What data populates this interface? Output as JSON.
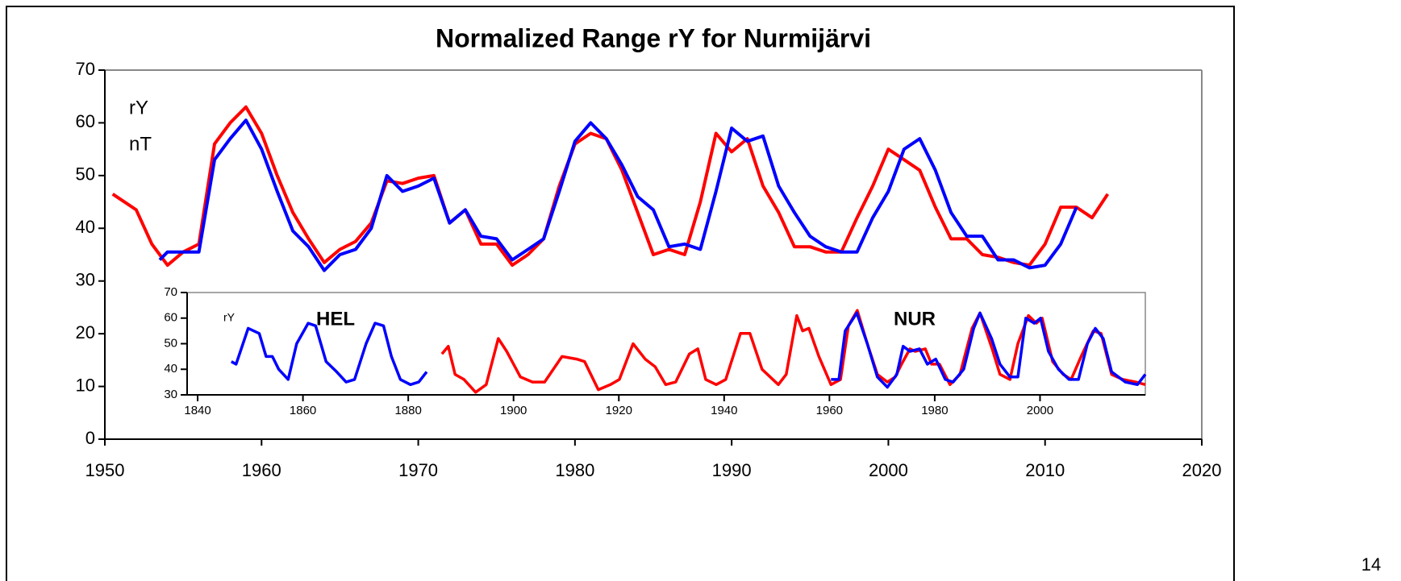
{
  "page_number": "14",
  "chart_data": [
    {
      "type": "line",
      "title": "Normalized Range rY for Nurmijärvi",
      "annotations": [
        "rY",
        "nT"
      ],
      "xlim": [
        1950,
        2020
      ],
      "xticks": [
        1950,
        1960,
        1970,
        1980,
        1990,
        2000,
        2010,
        2020
      ],
      "ylim": [
        0,
        70
      ],
      "yticks": [
        0,
        10,
        20,
        30,
        40,
        50,
        60,
        70
      ],
      "series": [
        {
          "color": "#ff0000",
          "x": [
            1950.5,
            1951,
            1952,
            1953,
            1954,
            1955,
            1956,
            1957,
            1958,
            1959,
            1960,
            1961,
            1962,
            1963,
            1964,
            1965,
            1966,
            1967,
            1968,
            1969,
            1970,
            1971,
            1972,
            1973,
            1974,
            1975,
            1976,
            1977,
            1978,
            1979,
            1980,
            1981,
            1982,
            1983,
            1984,
            1985,
            1986,
            1987,
            1988,
            1989,
            1990,
            1991,
            1992,
            1993,
            1994,
            1995,
            1996,
            1997,
            1998,
            1999,
            2000,
            2001,
            2002,
            2003,
            2004,
            2005,
            2006,
            2007,
            2008,
            2009,
            2010,
            2011,
            2012,
            2013,
            2014
          ],
          "values": [
            46.5,
            45.5,
            43.5,
            37,
            33,
            35.5,
            37,
            56,
            60,
            63,
            58,
            50,
            43,
            38,
            33.5,
            36,
            37.5,
            41,
            49,
            48.5,
            49.5,
            50,
            41,
            43.5,
            37,
            37,
            33,
            35,
            38,
            48,
            56,
            58,
            57,
            51,
            43,
            35,
            36,
            35,
            45,
            58,
            54.5,
            57,
            48,
            43,
            36.5,
            36.5,
            35.5,
            35.5,
            42,
            48,
            55,
            53,
            51,
            44,
            38,
            38,
            35,
            34.5,
            33.5,
            33,
            37,
            44,
            44,
            42,
            46.5
          ]
        },
        {
          "color": "#0000ff",
          "x": [
            1953.5,
            1954,
            1955,
            1956,
            1957,
            1958,
            1959,
            1960,
            1961,
            1962,
            1963,
            1964,
            1965,
            1966,
            1967,
            1968,
            1969,
            1970,
            1971,
            1972,
            1973,
            1974,
            1975,
            1976,
            1977,
            1978,
            1979,
            1980,
            1981,
            1982,
            1983,
            1984,
            1985,
            1986,
            1987,
            1988,
            1989,
            1990,
            1991,
            1992,
            1993,
            1994,
            1995,
            1996,
            1997,
            1998,
            1999,
            2000,
            2001,
            2002,
            2003,
            2004,
            2005,
            2006,
            2007,
            2008,
            2009,
            2010,
            2011,
            2012
          ],
          "values": [
            34,
            35.5,
            35.5,
            35.5,
            53,
            57,
            60.5,
            55,
            47,
            39.5,
            36.5,
            32,
            35,
            36,
            40,
            50,
            47,
            48,
            49.5,
            41,
            43.5,
            38.5,
            38,
            34,
            36,
            38,
            47,
            56.5,
            60,
            57,
            52,
            46,
            43.5,
            36.5,
            37,
            36,
            47,
            59,
            56.5,
            57.5,
            48,
            43,
            38.5,
            36.5,
            35.5,
            35.5,
            42,
            47,
            55,
            57,
            51,
            43,
            38.5,
            38.5,
            34,
            34,
            32.5,
            33,
            37,
            44
          ]
        }
      ]
    },
    {
      "type": "line",
      "annotations": [
        "rY",
        "HEL",
        "NUR"
      ],
      "xlim": [
        1838,
        2020
      ],
      "xticks": [
        1840,
        1860,
        1880,
        1900,
        1920,
        1940,
        1960,
        1980,
        2000
      ],
      "ylim": [
        30,
        70
      ],
      "yticks": [
        30,
        40,
        50,
        60,
        70
      ],
      "series": [
        {
          "color": "#0000ff",
          "x": [
            1846.4,
            1847.3,
            1849.6,
            1851.7,
            1853,
            1854.2,
            1855.4,
            1857.2,
            1858.8,
            1861,
            1862.4,
            1864.4,
            1866.4,
            1868.2,
            1869.8,
            1872,
            1873.7,
            1875.3,
            1876.8,
            1878.5,
            1880.4,
            1882,
            1883.5
          ],
          "values": [
            43,
            42,
            56,
            54,
            45,
            45,
            40,
            36,
            50,
            58,
            57,
            43,
            39,
            35,
            36,
            50,
            58,
            57,
            45,
            36,
            34,
            35,
            39
          ]
        },
        {
          "color": "#ff0000",
          "x": [
            1886.4,
            1887.6,
            1888.9,
            1890.6,
            1892.8,
            1894.8,
            1897.1,
            1898.7,
            1901.3,
            1903.6,
            1905.9,
            1909.2,
            1912,
            1913.5,
            1916.1,
            1918.4,
            1920.1,
            1922.7,
            1925,
            1926.9,
            1928.9,
            1930.8,
            1933.4,
            1935,
            1936.5,
            1938.5,
            1940.3,
            1943.1,
            1944.9,
            1947.2,
            1950.3,
            1951.8,
            1953.8,
            1954.9,
            1956.1,
            1958,
            1960.3,
            1962.1,
            1963.6,
            1965.3,
            1967.2,
            1969.1,
            1971,
            1972.5,
            1973.7,
            1975.3,
            1976.3,
            1978.2,
            1979.4,
            1980.9,
            1982.9,
            1984.8,
            1987.1,
            1988.6,
            1990.9,
            1992.4,
            1994.3,
            1995.8,
            1997.8,
            1999.3,
            2000.4,
            2002.4,
            2004.4,
            2005.9,
            2007.8,
            2010.1,
            2011.6,
            2013.6,
            2015.7,
            2018.2,
            2020
          ],
          "values": [
            46,
            49,
            38,
            36,
            31,
            34,
            52,
            47,
            37,
            35,
            35,
            45,
            44,
            43,
            32,
            34,
            36,
            50,
            44,
            41,
            34,
            35,
            46,
            48,
            36,
            34,
            36,
            54,
            54,
            40,
            34,
            38,
            61,
            55,
            56,
            45,
            34,
            36,
            57,
            63,
            50,
            38,
            35,
            37,
            42,
            48,
            47,
            48,
            42,
            42,
            34,
            38,
            56,
            62,
            48,
            38,
            36,
            50,
            61,
            58,
            60,
            43,
            38,
            36,
            45,
            55,
            54,
            38,
            36,
            35,
            34
          ]
        },
        {
          "color": "#0000ff",
          "x": [
            1960.3,
            1961.8,
            1963,
            1965.2,
            1967.2,
            1969.1,
            1971,
            1972.8,
            1974,
            1975.3,
            1977.1,
            1978.6,
            1980.2,
            1982,
            1983.5,
            1985.5,
            1987.4,
            1988.6,
            1990.8,
            1992.4,
            1994.3,
            1995.8,
            1997.3,
            1998.9,
            2000.1,
            2001.6,
            2003.5,
            2005.5,
            2007.3,
            2009,
            2010.5,
            2012,
            2013.6,
            2016.2,
            2018.5,
            2020
          ],
          "values": [
            36,
            36,
            55,
            62,
            50,
            37,
            33,
            38,
            49,
            47,
            48,
            42,
            44,
            36,
            35,
            40,
            56,
            62,
            52,
            42,
            37,
            37,
            60,
            58,
            60,
            47,
            40,
            36,
            36,
            50,
            56,
            52,
            39,
            35,
            34,
            38
          ]
        }
      ]
    }
  ]
}
